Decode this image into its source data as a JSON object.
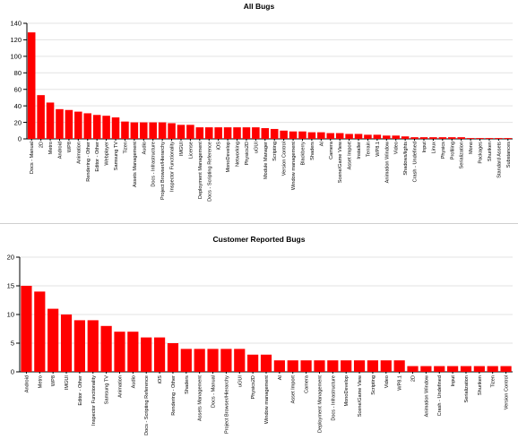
{
  "colors": {
    "bar": "#ff0000",
    "grid": "#e3e3e3",
    "axis": "#000000"
  },
  "chart_data": [
    {
      "type": "bar",
      "title": "All Bugs",
      "ylim": [
        0,
        140
      ],
      "yticks": [
        0,
        20,
        40,
        60,
        80,
        100,
        120,
        140
      ],
      "grid": true,
      "categories": [
        "Docs - Manual",
        "2D",
        "Metro",
        "Android",
        "WP8",
        "Animation",
        "Rendering - Other",
        "Editor - Other",
        "Webplayer",
        "Samsung TV",
        "Tizen",
        "Assets Management",
        "Audio",
        "Docs - Infrastructure",
        "Project Browser/Hierarchy",
        "Inspector Functionality",
        "IMGUI",
        "License",
        "Deployment Management",
        "Docs - Scripting Reference",
        "iOS",
        "MonoDevelop",
        "Networking",
        "Physics2D",
        "uGUI",
        "Module Manager",
        "Scripting",
        "Version Control",
        "Window management",
        "Blackberry",
        "Shaders",
        "AI",
        "Camera",
        "Scene/Game View",
        "Asset Import",
        "Installer",
        "Terrain",
        "WP8.1",
        "Animation Window",
        "Video",
        "Shadows/lights",
        "Crash - Undefined",
        "Input",
        "Linux",
        "Physics",
        "Profiling",
        "Serialization",
        "Mono",
        "Packages",
        "Shuriken",
        "Standard Assets",
        "Substances"
      ],
      "values": [
        129,
        53,
        44,
        36,
        35,
        33,
        31,
        29,
        28,
        26,
        21,
        20,
        20,
        20,
        20,
        19,
        17,
        17,
        14,
        14,
        14,
        14,
        14,
        14,
        14,
        13,
        12,
        10,
        9,
        9,
        8,
        8,
        7,
        7,
        6,
        6,
        5,
        5,
        4,
        4,
        3,
        2,
        2,
        2,
        2,
        2,
        2,
        1,
        1,
        1,
        1,
        1
      ]
    },
    {
      "type": "bar",
      "title": "Customer Reported Bugs",
      "ylim": [
        0,
        20
      ],
      "yticks": [
        0,
        5,
        10,
        15,
        20
      ],
      "grid": true,
      "categories": [
        "Android",
        "Metro",
        "WP8",
        "IMGUI",
        "Editor - Other",
        "Inspector Functionality",
        "Samsung TV",
        "Animation",
        "Audio",
        "Docs - Scripting Reference",
        "iOS",
        "Rendering - Other",
        "Shaders",
        "Assets Management",
        "Docs - Manual",
        "Project Browser/Hierarchy",
        "uGUI",
        "Physics2D",
        "Window management",
        "AI",
        "Asset Import",
        "Camera",
        "Deployment Management",
        "Docs - Infrastructure",
        "MonoDevelop",
        "Scene/Game View",
        "Scripting",
        "Video",
        "WP8.1",
        "2D",
        "Animation Window",
        "Crash - Undefined",
        "Input",
        "Serialization",
        "Shuriken",
        "Tizen",
        "Version Control"
      ],
      "values": [
        15,
        14,
        11,
        10,
        9,
        9,
        8,
        7,
        7,
        6,
        6,
        5,
        4,
        4,
        4,
        4,
        4,
        3,
        3,
        2,
        2,
        2,
        2,
        2,
        2,
        2,
        2,
        2,
        2,
        1,
        1,
        1,
        1,
        1,
        1,
        1,
        1
      ]
    }
  ]
}
